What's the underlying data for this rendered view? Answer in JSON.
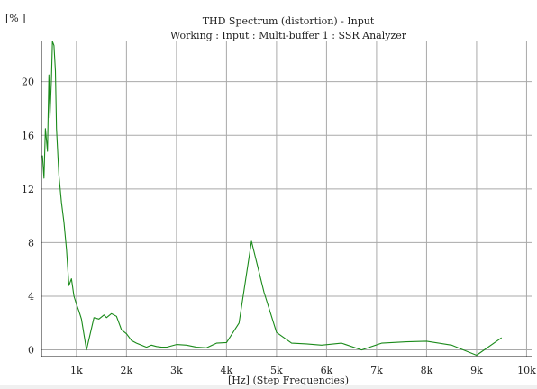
{
  "colors": {
    "background": "#ffffff",
    "grid": "#a9a9a9",
    "axis": "#1a1a1a",
    "series": "#1a8a1a",
    "text": "#222222"
  },
  "chart_data": {
    "type": "line",
    "title": "THD Spectrum (distortion) - Input",
    "subtitle": "Working : Input : Multi-buffer 1 : SSR Analyzer",
    "xlabel": "[Hz] (Step Frequencies)",
    "ylabel": "[% ]",
    "xlim": [
      300,
      10100
    ],
    "ylim": [
      -0.5,
      23
    ],
    "grid": true,
    "x_ticks": [
      1000,
      2000,
      3000,
      4000,
      5000,
      6000,
      7000,
      8000,
      9000,
      10000
    ],
    "x_tick_labels": [
      "1k",
      "2k",
      "3k",
      "4k",
      "5k",
      "6k",
      "7k",
      "8k",
      "9k",
      "10k"
    ],
    "y_ticks": [
      0,
      4,
      8,
      12,
      16,
      20
    ],
    "y_tick_labels": [
      "0",
      "4",
      "8",
      "12",
      "16",
      "20"
    ],
    "series": [
      {
        "x": [
          320,
          350,
          380,
          420,
          450,
          470,
          500,
          520,
          550,
          580,
          600,
          650,
          700,
          750,
          800,
          850,
          900,
          950,
          1000,
          1050,
          1100,
          1200,
          1350,
          1450,
          1550,
          1600,
          1700,
          1800,
          1900,
          2000,
          2100,
          2200,
          2400,
          2500,
          2600,
          2700,
          2800,
          3000,
          3200,
          3400,
          3600,
          3800,
          4000,
          4250,
          4500,
          4750,
          5000,
          5300,
          5600,
          5900,
          6300,
          6700,
          7100,
          7600,
          8000,
          8500,
          9000,
          9500
        ],
        "y": [
          14.5,
          12.8,
          16.5,
          14.8,
          20.5,
          17.3,
          20.2,
          23.0,
          22.7,
          20.8,
          16.5,
          13.0,
          11.0,
          9.5,
          7.5,
          4.8,
          5.3,
          4.0,
          3.4,
          2.9,
          2.3,
          0.0,
          2.4,
          2.3,
          2.6,
          2.4,
          2.7,
          2.5,
          1.5,
          1.2,
          0.7,
          0.5,
          0.2,
          0.35,
          0.25,
          0.2,
          0.2,
          0.4,
          0.35,
          0.2,
          0.15,
          0.5,
          0.55,
          2.0,
          8.1,
          4.3,
          1.3,
          0.5,
          0.45,
          0.35,
          0.5,
          0.0,
          0.5,
          0.6,
          0.65,
          0.35,
          -0.4,
          0.9
        ]
      }
    ]
  }
}
